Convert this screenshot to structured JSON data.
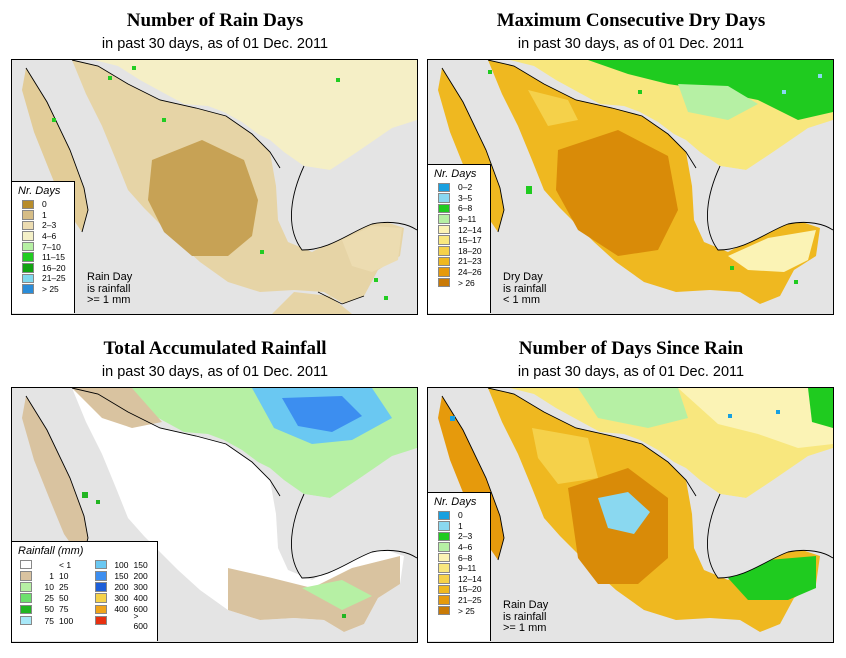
{
  "panels": [
    {
      "title": "Number of Rain Days",
      "subtitle": "in past 30 days, as of  01 Dec. 2011",
      "legend_title": "Nr. Days",
      "legend_items": [
        {
          "label": "0",
          "color": "#b88d2c"
        },
        {
          "label": "1",
          "color": "#d6bd86"
        },
        {
          "label": "2–3",
          "color": "#ecdcb1"
        },
        {
          "label": "4–6",
          "color": "#f4f0c8"
        },
        {
          "label": "7–10",
          "color": "#b6f0a4"
        },
        {
          "label": "11–15",
          "color": "#22cc22"
        },
        {
          "label": "16–20",
          "color": "#12a312"
        },
        {
          "label": "21–25",
          "color": "#7fd8ee"
        },
        {
          "label": "> 25",
          "color": "#2a8cd8"
        }
      ],
      "note": [
        "Rain Day",
        "is rainfall",
        ">= 1 mm"
      ]
    },
    {
      "title": "Maximum Consecutive Dry Days",
      "subtitle": "in past 30 days, as of  01 Dec. 2011",
      "legend_title": "Nr. Days",
      "legend_items": [
        {
          "label": "0–2",
          "color": "#18a0e0"
        },
        {
          "label": "3–5",
          "color": "#8ad8f0"
        },
        {
          "label": "6–8",
          "color": "#1fcb1f"
        },
        {
          "label": "9–11",
          "color": "#b6f0a4"
        },
        {
          "label": "12–14",
          "color": "#fbf3b5"
        },
        {
          "label": "15–17",
          "color": "#f8e77e"
        },
        {
          "label": "18–20",
          "color": "#f5d14a"
        },
        {
          "label": "21–23",
          "color": "#efb820"
        },
        {
          "label": "24–26",
          "color": "#e69a0c"
        },
        {
          "label": "> 26",
          "color": "#c97a06"
        }
      ],
      "note": [
        "Dry Day",
        "is rainfall",
        "< 1 mm"
      ]
    },
    {
      "title": "Total Accumulated Rainfall",
      "subtitle": "in past 30 days, as of  01 Dec. 2011",
      "legend_title": "Rainfall (mm)",
      "legend_left": [
        {
          "lo": "",
          "hi": "< 1",
          "color": "#ffffff"
        },
        {
          "lo": "1",
          "hi": "10",
          "color": "#d9c3a0"
        },
        {
          "lo": "10",
          "hi": "25",
          "color": "#b6f0a4"
        },
        {
          "lo": "25",
          "hi": "50",
          "color": "#6ee06e"
        },
        {
          "lo": "50",
          "hi": "75",
          "color": "#22b522"
        },
        {
          "lo": "75",
          "hi": "100",
          "color": "#a8e8f8"
        }
      ],
      "legend_right": [
        {
          "lo": "100",
          "hi": "150",
          "color": "#6ac8f2"
        },
        {
          "lo": "150",
          "hi": "200",
          "color": "#3c8ef0"
        },
        {
          "lo": "200",
          "hi": "300",
          "color": "#1d5ed8"
        },
        {
          "lo": "300",
          "hi": "400",
          "color": "#f5d24a"
        },
        {
          "lo": "400",
          "hi": "600",
          "color": "#f0a41a"
        },
        {
          "lo": "",
          "hi": "> 600",
          "color": "#e83010"
        }
      ]
    },
    {
      "title": "Number of Days Since Rain",
      "subtitle": "in past 30 days, as of  01 Dec. 2011",
      "legend_title": "Nr. Days",
      "legend_items": [
        {
          "label": "0",
          "color": "#18a0e0"
        },
        {
          "label": "1",
          "color": "#8ad8f0"
        },
        {
          "label": "2–3",
          "color": "#1fcb1f"
        },
        {
          "label": "4–6",
          "color": "#b6f0a4"
        },
        {
          "label": "6–8",
          "color": "#fbf3b5"
        },
        {
          "label": "9–11",
          "color": "#f8e77e"
        },
        {
          "label": "12–14",
          "color": "#f5d14a"
        },
        {
          "label": "15–20",
          "color": "#efb820"
        },
        {
          "label": "21–25",
          "color": "#e69a0c"
        },
        {
          "label": "> 25",
          "color": "#c97a06"
        }
      ],
      "note": [
        "Rain Day",
        "is rainfall",
        ">= 1 mm"
      ]
    }
  ]
}
